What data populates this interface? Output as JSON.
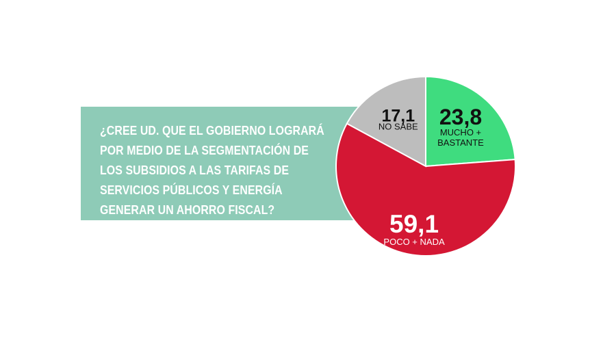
{
  "question": {
    "lines": [
      "¿CREE UD. QUE EL GOBIERNO LOGRARÁ",
      "POR MEDIO DE LA SEGMENTACIÓN DE",
      "LOS SUBSIDIOS A LAS TARIFAS DE",
      "SERVICIOS PÚBLICOS Y ENERGÍA",
      "GENERAR UN AHORRO FISCAL?"
    ]
  },
  "chart_data": {
    "type": "pie",
    "slices": [
      {
        "value_label": "23,8",
        "category_lines": [
          "MUCHO +",
          "BASTANTE"
        ],
        "value": 23.8,
        "color": "#3fdc7f",
        "text_color": "#111111"
      },
      {
        "value_label": "59,1",
        "category_lines": [
          "POCO + NADA"
        ],
        "value": 59.1,
        "color": "#d41734",
        "text_color": "#ffffff"
      },
      {
        "value_label": "17,1",
        "category_lines": [
          "NO SABE"
        ],
        "value": 17.1,
        "color": "#bdbdbd",
        "text_color": "#111111"
      }
    ]
  },
  "colors": {
    "question_box": "#8ecbb7",
    "question_text": "#ffffff",
    "separator": "#ffffff"
  }
}
